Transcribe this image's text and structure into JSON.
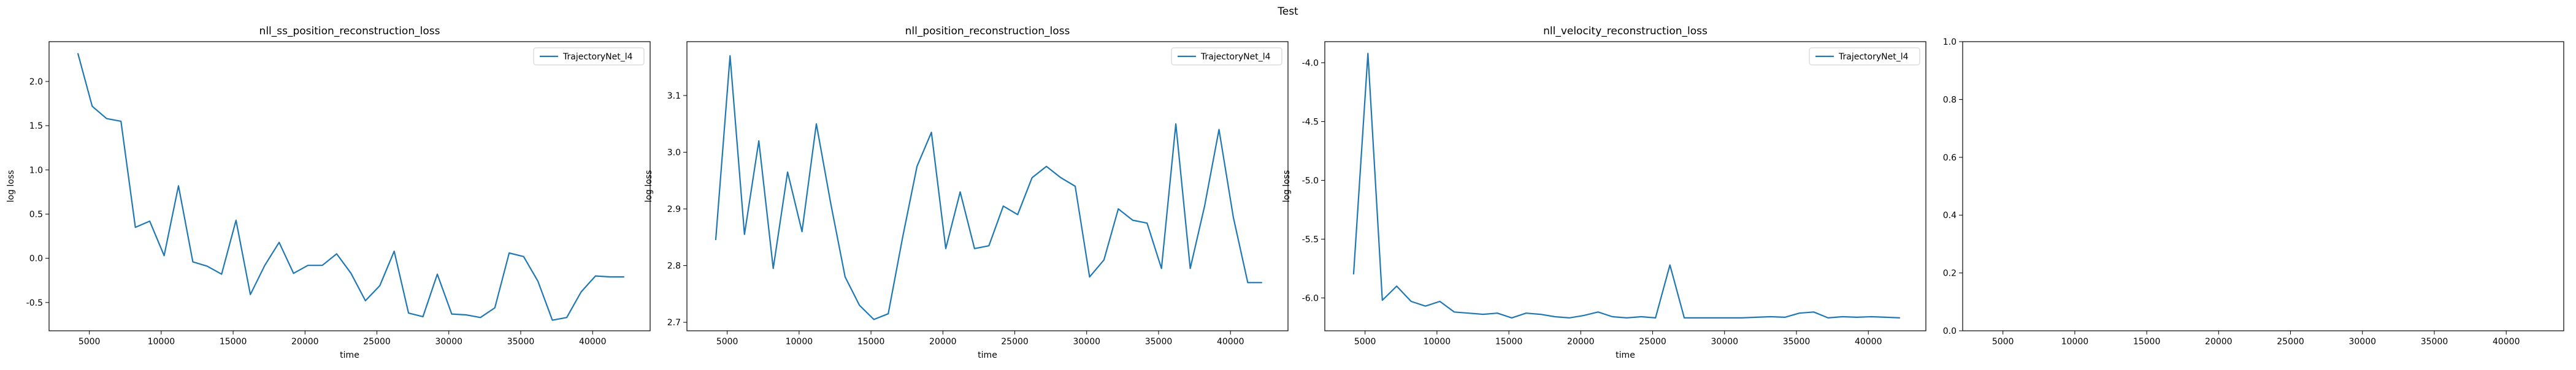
{
  "figure_title": "Test",
  "chart_data": [
    {
      "type": "line",
      "title": "nll_ss_position_reconstruction_loss",
      "xlabel": "time",
      "ylabel": "log loss",
      "xlim": [
        2200,
        44000
      ],
      "ylim": [
        -0.82,
        2.45
      ],
      "xticks": [
        5000,
        10000,
        15000,
        20000,
        25000,
        30000,
        35000,
        40000
      ],
      "yticks": [
        -0.5,
        0.0,
        0.5,
        1.0,
        1.5,
        2.0
      ],
      "ytick_decimals": 1,
      "legend": "top-right",
      "series": [
        {
          "name": "TrajectoryNet_l4",
          "color": "#1f77b4",
          "x": [
            4200,
            5200,
            6200,
            7200,
            8200,
            9200,
            10200,
            11200,
            12200,
            13200,
            14200,
            15200,
            16200,
            17200,
            18200,
            19200,
            20200,
            21200,
            22200,
            23200,
            24200,
            25200,
            26200,
            27200,
            28200,
            29200,
            30200,
            31200,
            32200,
            33200,
            34200,
            35200,
            36200,
            37200,
            38200,
            39200,
            40200,
            41200,
            42200
          ],
          "values": [
            2.32,
            1.72,
            1.58,
            1.55,
            0.35,
            0.42,
            0.03,
            0.82,
            -0.04,
            -0.09,
            -0.18,
            0.43,
            -0.41,
            -0.08,
            0.18,
            -0.17,
            -0.08,
            -0.08,
            0.05,
            -0.17,
            -0.48,
            -0.31,
            0.08,
            -0.62,
            -0.66,
            -0.18,
            -0.63,
            -0.64,
            -0.67,
            -0.56,
            0.06,
            0.02,
            -0.26,
            -0.7,
            -0.67,
            -0.38,
            -0.2,
            -0.21,
            -0.21
          ]
        }
      ]
    },
    {
      "type": "line",
      "title": "nll_position_reconstruction_loss",
      "xlabel": "time",
      "ylabel": "log loss",
      "xlim": [
        2200,
        44000
      ],
      "ylim": [
        2.685,
        3.195
      ],
      "xticks": [
        5000,
        10000,
        15000,
        20000,
        25000,
        30000,
        35000,
        40000
      ],
      "yticks": [
        2.7,
        2.8,
        2.9,
        3.0,
        3.1
      ],
      "ytick_decimals": 1,
      "legend": "top-right",
      "series": [
        {
          "name": "TrajectoryNet_l4",
          "color": "#1f77b4",
          "x": [
            4200,
            5200,
            6200,
            7200,
            8200,
            9200,
            10200,
            11200,
            12200,
            13200,
            14200,
            15200,
            16200,
            17200,
            18200,
            19200,
            20200,
            21200,
            22200,
            23200,
            24200,
            25200,
            26200,
            27200,
            28200,
            29200,
            30200,
            31200,
            32200,
            33200,
            34200,
            35200,
            36200,
            37200,
            38200,
            39200,
            40200,
            41200,
            42200
          ],
          "values": [
            2.845,
            3.17,
            2.855,
            3.02,
            2.795,
            2.965,
            2.86,
            3.05,
            2.91,
            2.78,
            2.73,
            2.705,
            2.715,
            2.85,
            2.975,
            3.035,
            2.83,
            2.93,
            2.83,
            2.835,
            2.905,
            2.89,
            2.955,
            2.975,
            2.955,
            2.94,
            2.78,
            2.81,
            2.9,
            2.88,
            2.875,
            2.795,
            3.05,
            2.795,
            2.905,
            3.04,
            2.885,
            2.77,
            2.77
          ]
        }
      ]
    },
    {
      "type": "line",
      "title": "nll_velocity_reconstruction_loss",
      "xlabel": "time",
      "ylabel": "log loss",
      "xlim": [
        2200,
        44000
      ],
      "ylim": [
        -6.28,
        -3.82
      ],
      "xticks": [
        5000,
        10000,
        15000,
        20000,
        25000,
        30000,
        35000,
        40000
      ],
      "yticks": [
        -6.0,
        -5.5,
        -5.0,
        -4.5,
        -4.0
      ],
      "ytick_decimals": 1,
      "legend": "top-right",
      "series": [
        {
          "name": "TrajectoryNet_l4",
          "color": "#1f77b4",
          "x": [
            4200,
            5200,
            6200,
            7200,
            8200,
            9200,
            10200,
            11200,
            12200,
            13200,
            14200,
            15200,
            16200,
            17200,
            18200,
            19200,
            20200,
            21200,
            22200,
            23200,
            24200,
            25200,
            26200,
            27200,
            28200,
            29200,
            30200,
            31200,
            32200,
            33200,
            34200,
            35200,
            36200,
            37200,
            38200,
            39200,
            40200,
            41200,
            42200
          ],
          "values": [
            -5.8,
            -3.92,
            -6.02,
            -5.9,
            -6.03,
            -6.07,
            -6.03,
            -6.12,
            -6.13,
            -6.14,
            -6.13,
            -6.17,
            -6.13,
            -6.14,
            -6.16,
            -6.17,
            -6.15,
            -6.12,
            -6.16,
            -6.17,
            -6.16,
            -6.17,
            -5.72,
            -6.17,
            -6.17,
            -6.17,
            -6.17,
            -6.17,
            -6.165,
            -6.16,
            -6.165,
            -6.13,
            -6.12,
            -6.17,
            -6.16,
            -6.165,
            -6.16,
            -6.165,
            -6.17
          ]
        }
      ]
    },
    {
      "type": "line",
      "title": "",
      "xlabel": "",
      "ylabel": "",
      "xlim": [
        2200,
        44000
      ],
      "ylim": [
        0.0,
        1.0
      ],
      "xticks": [
        5000,
        10000,
        15000,
        20000,
        25000,
        30000,
        35000,
        40000
      ],
      "yticks": [
        0.0,
        0.2,
        0.4,
        0.6,
        0.8,
        1.0
      ],
      "ytick_decimals": 1,
      "legend": "none",
      "series": []
    }
  ]
}
